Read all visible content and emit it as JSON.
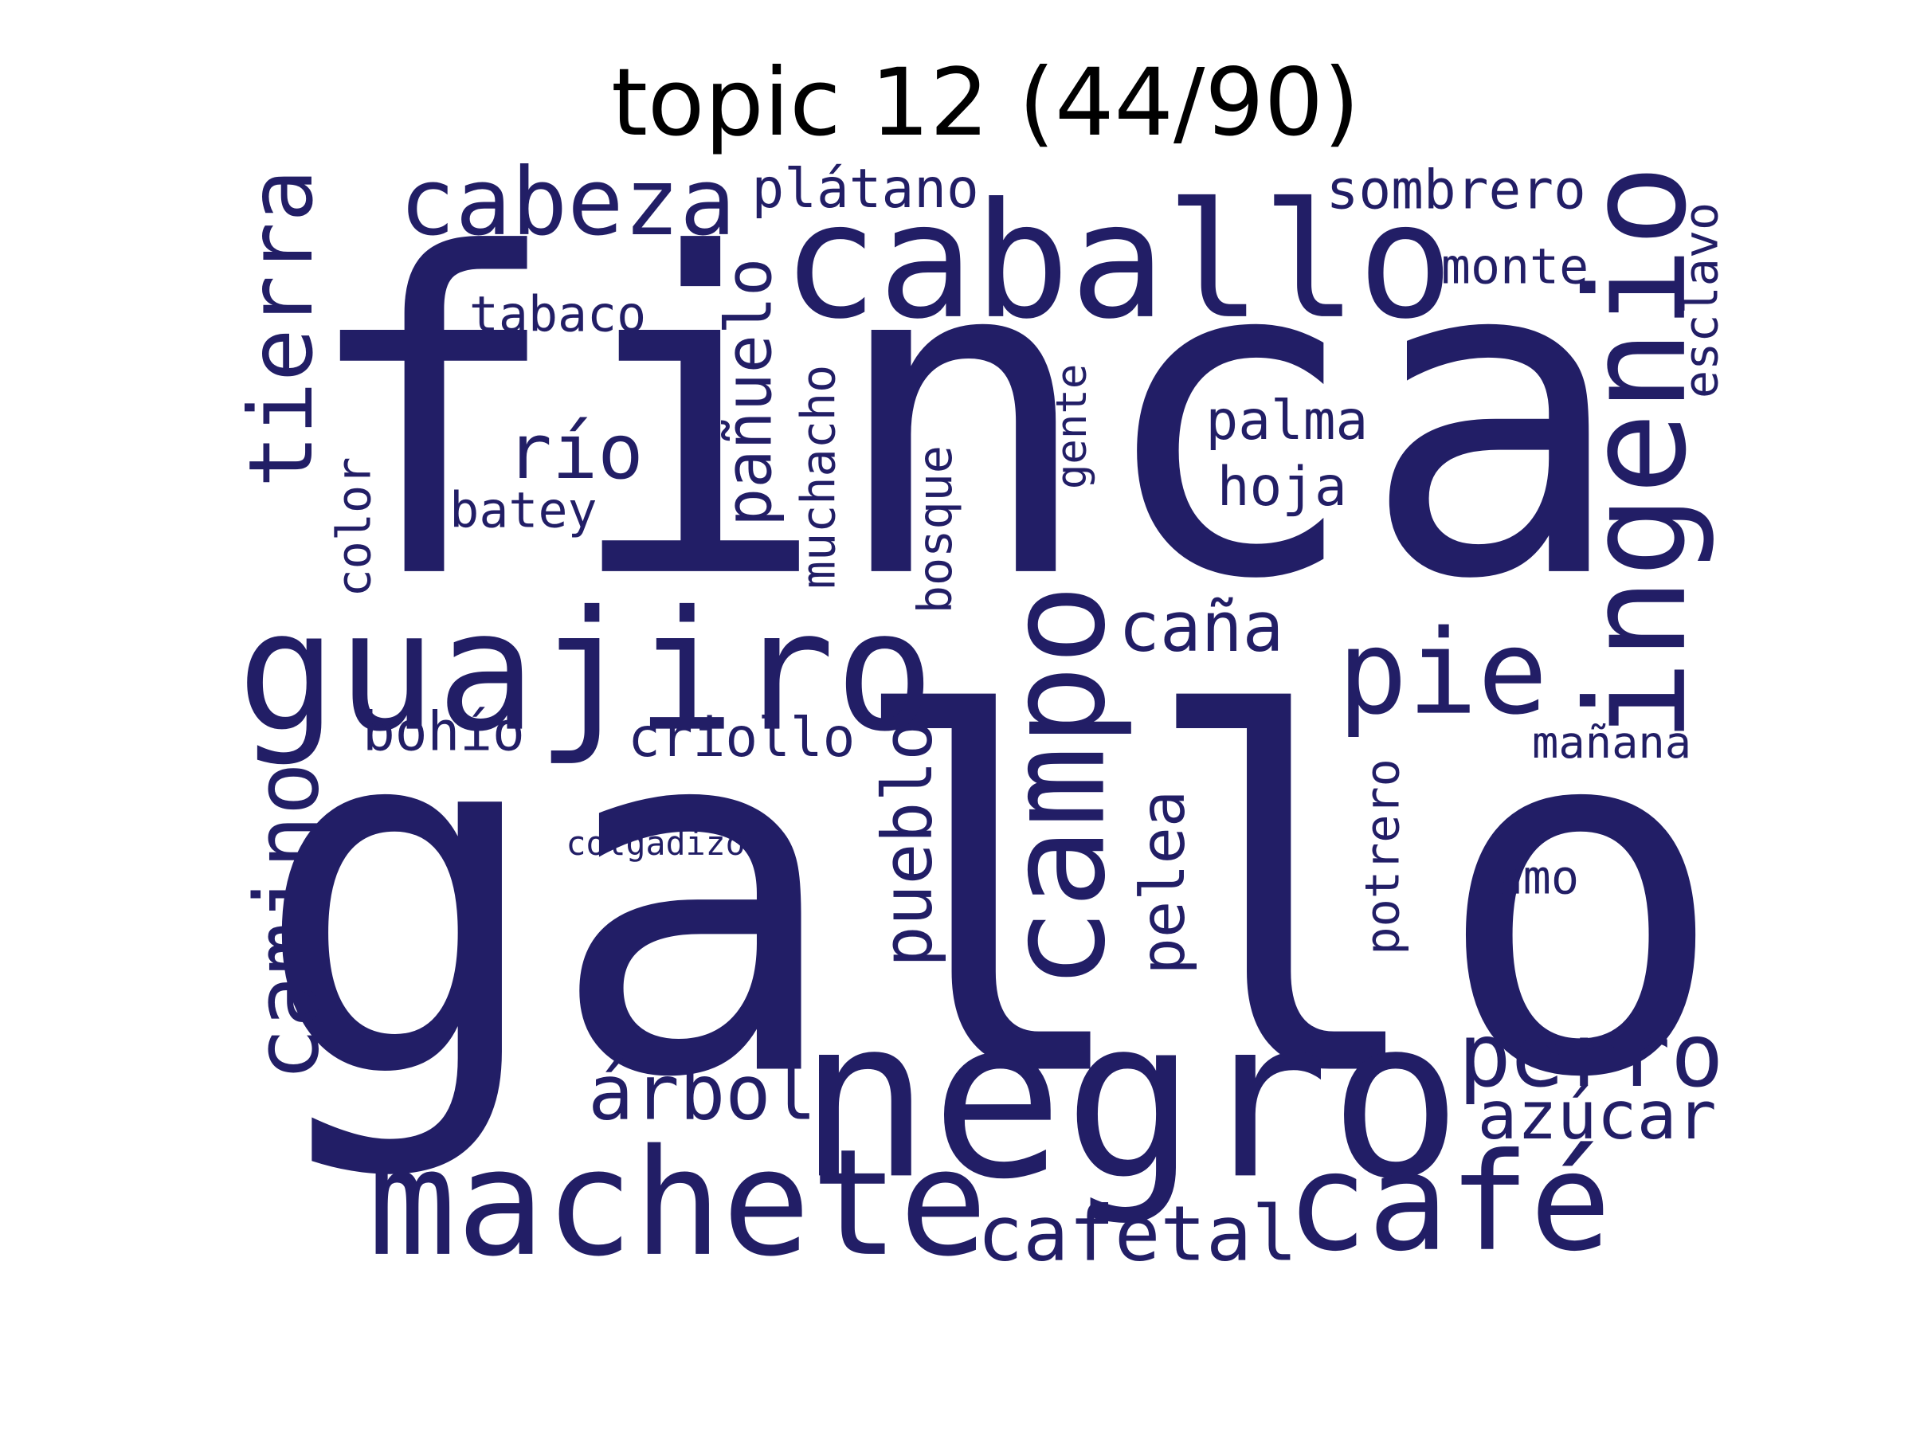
{
  "title": "topic 12 (44/90)",
  "word_color": "#221e66",
  "words": {
    "finca": "finca",
    "gallo": "gallo",
    "negro": "negro",
    "caballo": "caballo",
    "guajiro": "guajiro",
    "machete": "machete",
    "cafe": "café",
    "ingenio": "ingenio",
    "campo": "campo",
    "pie": "pie",
    "cabeza": "cabeza",
    "tierra": "tierra",
    "camino": "camino",
    "perro": "perro",
    "cafetal": "cafetal",
    "arbol": "árbol",
    "azucar": "azúcar",
    "pueblo": "pueblo",
    "rio": "río",
    "panuelo": "pañuelo",
    "cana": "caña",
    "sombrero": "sombrero",
    "platano": "plátano",
    "pelea": "pelea",
    "palma": "palma",
    "hoja": "hoja",
    "criollo": "criollo",
    "bohio": "bohío",
    "monte": "monte",
    "tabaco": "tabaco",
    "esclavo": "esclavo",
    "muchacho": "muchacho",
    "bosque": "bosque",
    "batey": "batey",
    "color": "color",
    "gente": "gente",
    "potrero": "potrero",
    "manana": "mañana",
    "amo": "amo",
    "colgadizo": "colgadizo"
  }
}
